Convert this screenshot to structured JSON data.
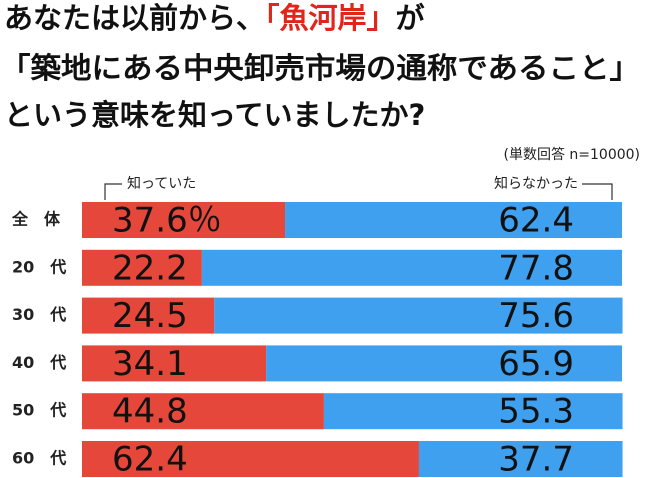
{
  "chart_data": {
    "type": "stacked_barh",
    "title": [
      "あなたは以前から、",
      "「魚河岸」",
      "が",
      "「築地にある中央卸売市場の通称であること」",
      "という意味を知っていましたか?"
    ],
    "title_highlight_color": "#e0251b",
    "subtitle": "(単数回答 n=10000)",
    "categories": [
      "全　体",
      "20　代",
      "30　代",
      "40　代",
      "50　代",
      "60　代"
    ],
    "series": [
      {
        "name": "知っていた",
        "color": "#e5483a",
        "values": [
          37.6,
          22.2,
          24.5,
          34.1,
          44.8,
          62.4
        ],
        "value_labels": [
          "37.6％",
          "22.2",
          "24.5",
          "34.1",
          "44.8",
          "62.4"
        ]
      },
      {
        "name": "知らなかった",
        "color": "#3fa0ef",
        "values": [
          62.4,
          77.8,
          75.6,
          65.9,
          55.3,
          37.7
        ]
      }
    ],
    "xlim": [
      0,
      100
    ]
  }
}
